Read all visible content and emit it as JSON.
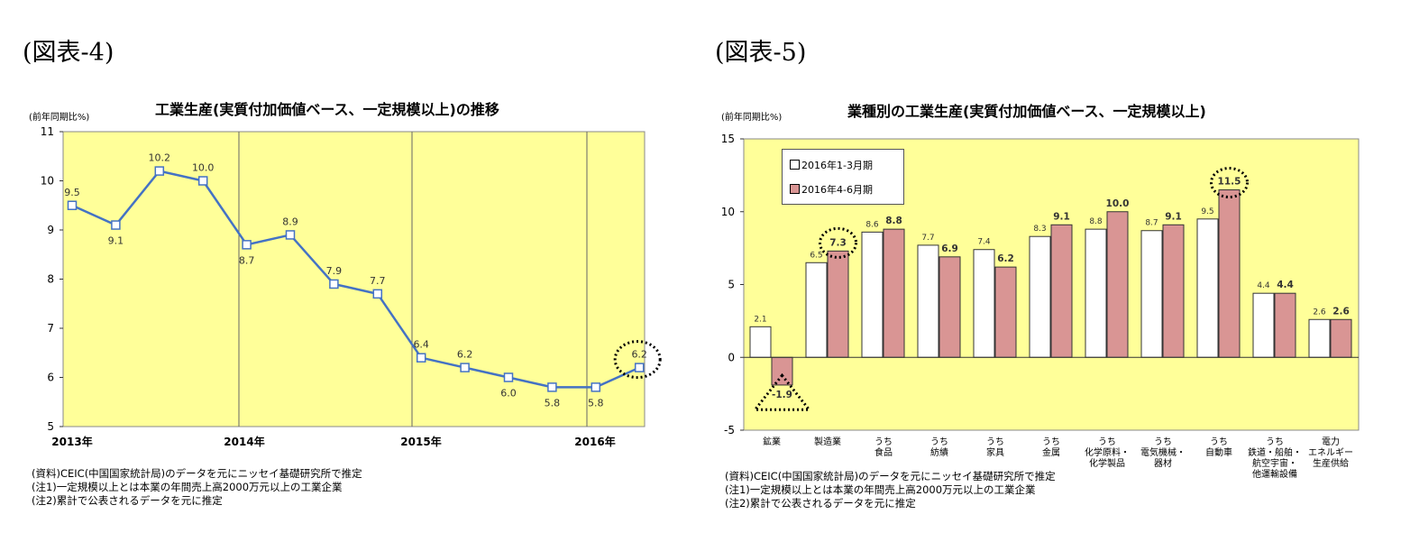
{
  "figures": {
    "fig4_label": "(図表-4)",
    "fig5_label": "(図表-5)"
  },
  "colors": {
    "plot_bg": "#ffff99",
    "line": "#4472c4",
    "bar_light": "#ffffff",
    "bar_dark": "#d99594"
  },
  "chart1": {
    "title": "工業生産(実質付加価値ベース、一定規模以上)の推移",
    "unit": "(前年同期比%)",
    "notes": [
      "(資料)CEIC(中国国家統計局)のデータを元にニッセイ基礎研究所で推定",
      "(注1)一定規模以上とは本業の年間売上高2000万元以上の工業企業",
      "(注2)累計で公表されるデータを元に推定"
    ]
  },
  "chart2": {
    "title": "業種別の工業生産(実質付加価値ベース、一定規模以上)",
    "unit": "(前年同期比%)",
    "legend": [
      "2016年1-3月期",
      "2016年4-6月期"
    ],
    "notes": [
      "(資料)CEIC(中国国家統計局)のデータを元にニッセイ基礎研究所で推定",
      "(注1)一定規模以上とは本業の年間売上高2000万元以上の工業企業",
      "(注2)累計で公表されるデータを元に推定"
    ]
  },
  "chart_data": [
    {
      "type": "line",
      "title": "工業生産(実質付加価値ベース、一定規模以上)の推移",
      "ylabel": "(前年同期比%)",
      "ylim": [
        5,
        11
      ],
      "yticks": [
        5,
        6,
        7,
        8,
        9,
        10,
        11
      ],
      "x_year_labels": [
        "2013年",
        "2014年",
        "2015年",
        "2016年"
      ],
      "x": [
        "2013Q1",
        "2013Q2",
        "2013Q3",
        "2013Q4",
        "2014Q1",
        "2014Q2",
        "2014Q3",
        "2014Q4",
        "2015Q1",
        "2015Q2",
        "2015Q3",
        "2015Q4",
        "2016Q1",
        "2016Q2"
      ],
      "values": [
        9.5,
        9.1,
        10.2,
        10.0,
        8.7,
        8.9,
        7.9,
        7.7,
        6.4,
        6.2,
        6.0,
        5.8,
        5.8,
        6.2
      ],
      "labels": [
        "9.5",
        "9.1",
        "10.2",
        "10.0",
        "8.7",
        "8.9",
        "7.9",
        "7.7",
        "6.4",
        "6.2",
        "6.0",
        "5.8",
        "5.8",
        "6.2"
      ],
      "grid": false,
      "year_dividers": true
    },
    {
      "type": "bar",
      "title": "業種別の工業生産(実質付加価値ベース、一定規模以上)",
      "ylabel": "(前年同期比%)",
      "ylim": [
        -5,
        15
      ],
      "yticks": [
        -5,
        0,
        5,
        10,
        15
      ],
      "legend_position": "top-left",
      "categories": [
        [
          "鉱業"
        ],
        [
          "製造業"
        ],
        [
          "うち",
          "食品"
        ],
        [
          "うち",
          "紡績"
        ],
        [
          "うち",
          "家具"
        ],
        [
          "うち",
          "金属"
        ],
        [
          "うち",
          "化学原料・",
          "化学製品"
        ],
        [
          "うち",
          "電気機械・",
          "器材"
        ],
        [
          "うち",
          "自動車"
        ],
        [
          "うち",
          "鉄道・船舶・",
          "航空宇宙・",
          "他運輸設備"
        ],
        [
          "電力",
          "エネルギー",
          "生産供給"
        ]
      ],
      "series": [
        {
          "name": "2016年1-3月期",
          "values": [
            2.1,
            6.5,
            8.6,
            7.7,
            7.4,
            8.3,
            8.8,
            8.7,
            9.5,
            4.4,
            2.6
          ],
          "labels": [
            "2.1",
            "6.5",
            "8.6",
            "7.7",
            "7.4",
            "8.3",
            "8.8",
            "8.7",
            "9.5",
            "4.4",
            "2.6"
          ]
        },
        {
          "name": "2016年4-6月期",
          "values": [
            -1.9,
            7.3,
            8.8,
            6.9,
            6.2,
            9.1,
            10.0,
            9.1,
            11.5,
            4.4,
            2.6
          ],
          "labels": [
            "-1.9",
            "7.3",
            "8.8",
            "6.9",
            "6.2",
            "9.1",
            "10.0",
            "9.1",
            "11.5",
            "4.4",
            "2.6"
          ]
        }
      ]
    }
  ]
}
